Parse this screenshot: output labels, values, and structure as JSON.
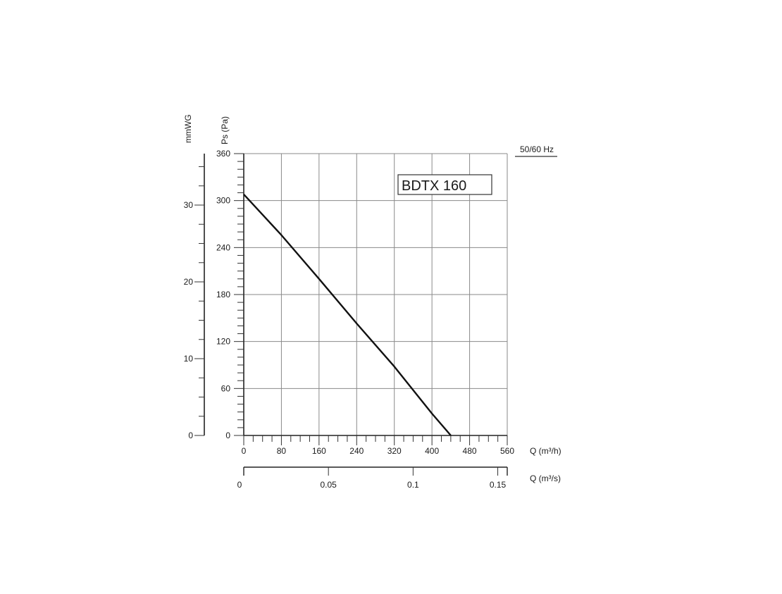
{
  "chart_data": {
    "type": "line",
    "frequency_label": "50/60 Hz",
    "model_label": "BDTX 160",
    "x_axis_primary": {
      "label": "Q (m³/h)",
      "range": [
        0,
        560
      ],
      "ticks": [
        0,
        80,
        160,
        240,
        320,
        400,
        480,
        560
      ],
      "tick_labels": [
        "0",
        "80",
        "160",
        "240",
        "320",
        "400",
        "480",
        "560"
      ]
    },
    "x_axis_secondary": {
      "label": "Q (m³/s)",
      "range": [
        0,
        0.1556
      ],
      "ticks": [
        0,
        0.05,
        0.1,
        0.15
      ],
      "tick_labels": [
        "0",
        "0.05",
        "0.1",
        "0.15"
      ]
    },
    "y_axis_primary": {
      "label": "Ps (Pa)",
      "range": [
        0,
        360
      ],
      "ticks": [
        0,
        60,
        120,
        180,
        240,
        300,
        360
      ],
      "tick_labels": [
        "0",
        "60",
        "120",
        "180",
        "240",
        "300",
        "360"
      ]
    },
    "y_axis_secondary": {
      "label": "mmWG",
      "range": [
        0,
        36.7
      ],
      "ticks": [
        0,
        10,
        20,
        30
      ],
      "tick_labels": [
        "0",
        "10",
        "20",
        "30"
      ]
    },
    "grid": true,
    "series": [
      {
        "x": [
          0,
          80,
          160,
          240,
          320,
          400,
          440
        ],
        "y": [
          308,
          256,
          200,
          143,
          88,
          28,
          0
        ]
      }
    ]
  }
}
